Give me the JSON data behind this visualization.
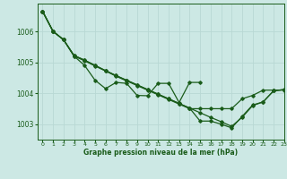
{
  "background_color": "#cce8e4",
  "grid_color": "#b0d4d0",
  "line_color": "#1a5c1a",
  "xlabel": "Graphe pression niveau de la mer (hPa)",
  "ylim": [
    1002.5,
    1006.9
  ],
  "xlim": [
    -0.5,
    23
  ],
  "yticks": [
    1003,
    1004,
    1005,
    1006
  ],
  "xticks": [
    0,
    1,
    2,
    3,
    4,
    5,
    6,
    7,
    8,
    9,
    10,
    11,
    12,
    13,
    14,
    15,
    16,
    17,
    18,
    19,
    20,
    21,
    22,
    23
  ],
  "series": [
    {
      "x": [
        0,
        1,
        2,
        3,
        4,
        5,
        6,
        7,
        8,
        9,
        10,
        11,
        12,
        13,
        14,
        15
      ],
      "y": [
        1006.65,
        1006.0,
        1005.73,
        1005.2,
        1004.9,
        1004.42,
        1004.15,
        1004.35,
        1004.32,
        1003.93,
        1003.92,
        1004.32,
        1004.32,
        1003.7,
        1004.35,
        1004.35
      ]
    },
    {
      "x": [
        0,
        1,
        2,
        3,
        4,
        5,
        6,
        7,
        8,
        9,
        10,
        11,
        12,
        13,
        14,
        15,
        16,
        17,
        18,
        19,
        20,
        21,
        22,
        23
      ],
      "y": [
        1006.65,
        1006.0,
        1005.73,
        1005.2,
        1005.05,
        1004.88,
        1004.72,
        1004.55,
        1004.4,
        1004.25,
        1004.1,
        1003.95,
        1003.8,
        1003.65,
        1003.5,
        1003.5,
        1003.5,
        1003.5,
        1003.5,
        1003.82,
        1003.93,
        1004.1,
        1004.1,
        1004.1
      ]
    },
    {
      "x": [
        0,
        1,
        2,
        3,
        4,
        5,
        6,
        7,
        8,
        9,
        10,
        11,
        12,
        13,
        14,
        15,
        16,
        17,
        18,
        19,
        20,
        21,
        22,
        23
      ],
      "y": [
        1006.65,
        1006.0,
        1005.73,
        1005.22,
        1005.07,
        1004.9,
        1004.73,
        1004.57,
        1004.42,
        1004.27,
        1004.12,
        1003.97,
        1003.82,
        1003.67,
        1003.52,
        1003.37,
        1003.22,
        1003.08,
        1002.93,
        1003.22,
        1003.6,
        1003.72,
        1004.08,
        1004.12
      ]
    },
    {
      "x": [
        0,
        1,
        2,
        3,
        4,
        5,
        6,
        7,
        8,
        9,
        10,
        11,
        12,
        13,
        14,
        15,
        16,
        17,
        18,
        19,
        20,
        21,
        22,
        23
      ],
      "y": [
        1006.65,
        1006.0,
        1005.73,
        1005.22,
        1005.07,
        1004.9,
        1004.73,
        1004.57,
        1004.42,
        1004.27,
        1004.12,
        1003.97,
        1003.82,
        1003.67,
        1003.52,
        1003.1,
        1003.1,
        1003.0,
        1002.88,
        1003.25,
        1003.62,
        1003.72,
        1004.08,
        1004.12
      ]
    }
  ]
}
